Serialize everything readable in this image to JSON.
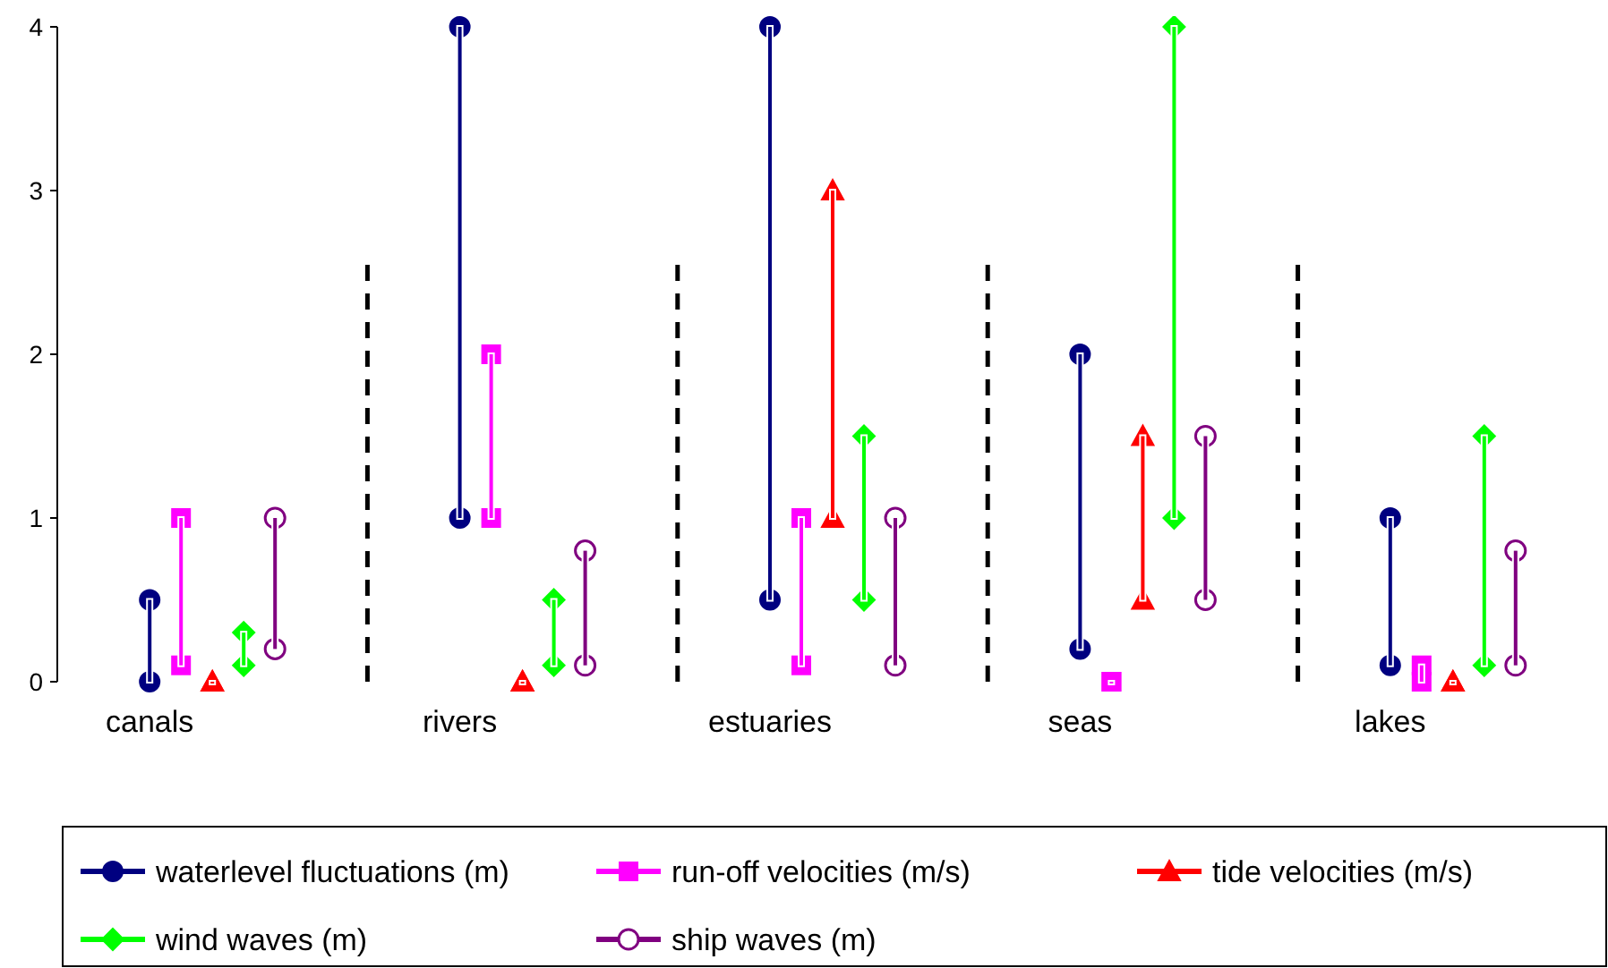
{
  "chart_data": {
    "type": "bar",
    "categories": [
      "canals",
      "rivers",
      "estuaries",
      "seas",
      "lakes"
    ],
    "ylim": [
      0,
      4
    ],
    "yticks": [
      0,
      1,
      2,
      3,
      4
    ],
    "grid": false,
    "legend": "bottom",
    "series": [
      {
        "name": "waterlevel fluctuations (m)",
        "color": "#000080",
        "marker": "circle",
        "base": [
          0,
          1,
          0.5,
          0.2,
          0.1
        ],
        "values": [
          0.5,
          3,
          3.5,
          1.8,
          0.9
        ]
      },
      {
        "name": "run-off velocities (m/s)",
        "color": "#ff00ff",
        "marker": "square",
        "base": [
          0.1,
          1,
          0.1,
          0,
          0
        ],
        "values": [
          0.9,
          1,
          0.9,
          0,
          0.1
        ]
      },
      {
        "name": "tide velocities (m/s)",
        "color": "#ff0000",
        "marker": "triangle",
        "base": [
          0,
          0,
          1,
          0.5,
          0
        ],
        "values": [
          0,
          0,
          2,
          1,
          0
        ]
      },
      {
        "name": "wind waves (m)",
        "color": "#00ff00",
        "marker": "diamond",
        "base": [
          0.1,
          0.1,
          0.5,
          1,
          0.1
        ],
        "values": [
          0.2,
          0.4,
          1,
          3,
          1.4
        ]
      },
      {
        "name": "ship waves (m)",
        "color": "#800080",
        "marker": "circle",
        "base": [
          0.2,
          0.1,
          0.1,
          0.5,
          0.1
        ],
        "values": [
          0.8,
          0.7,
          0.9,
          1,
          0.7
        ]
      }
    ]
  }
}
